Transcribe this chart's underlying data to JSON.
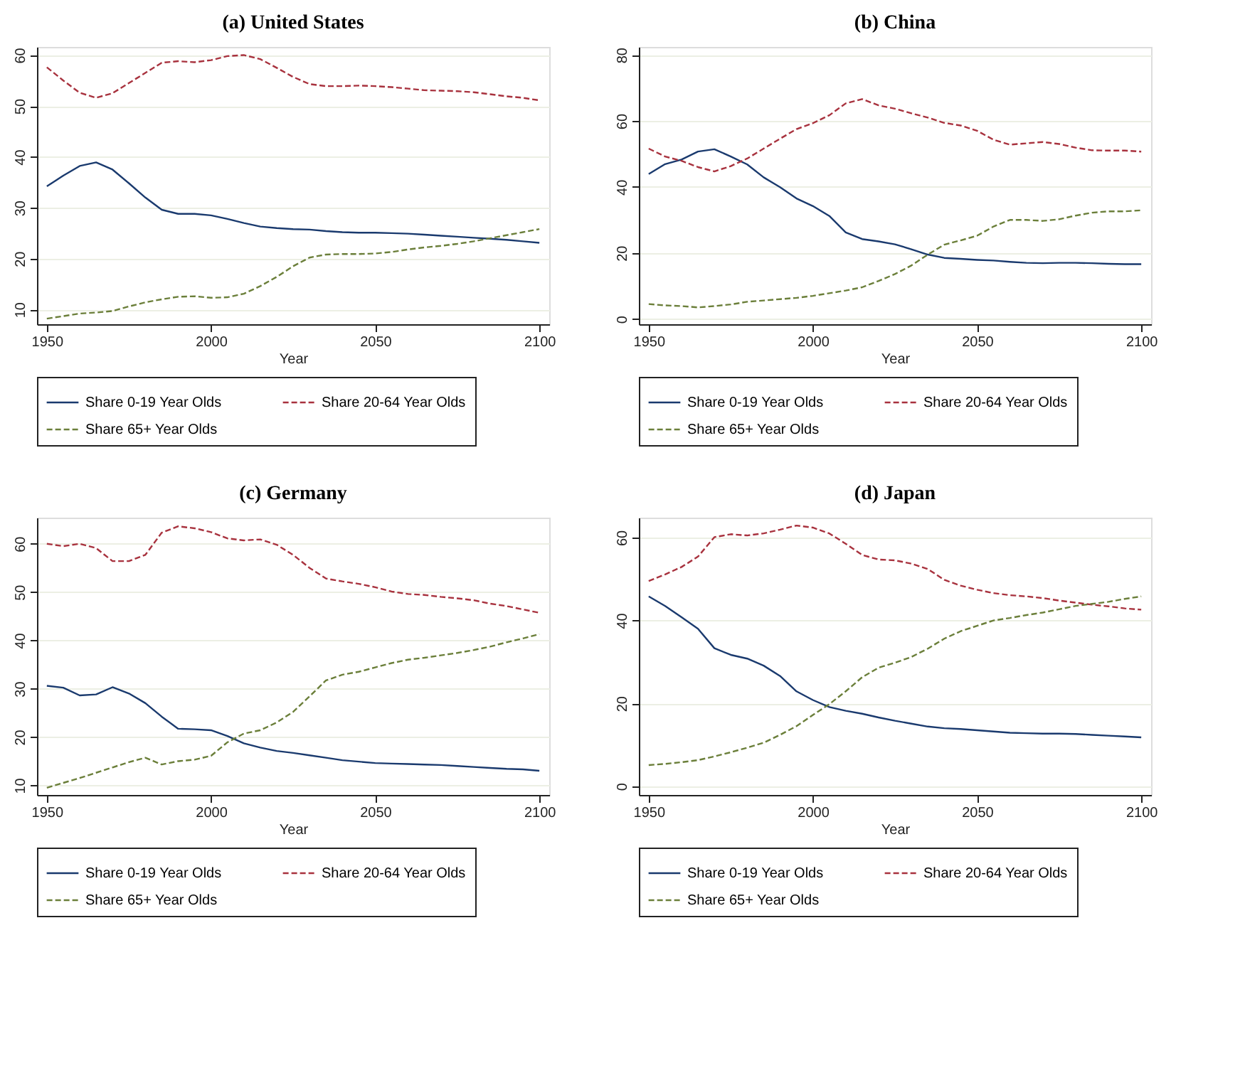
{
  "chart_data": [
    {
      "type": "line",
      "title": "(a) United States",
      "xlabel": "Year",
      "xlim": [
        1947,
        2103
      ],
      "xticks": [
        1950,
        2000,
        2050,
        2100
      ],
      "ylim": [
        7.1,
        61.6
      ],
      "yticks": [
        10,
        20,
        30,
        40,
        50,
        60
      ],
      "grid": "y",
      "legend": "bottom",
      "marker": "none",
      "x": [
        1950,
        1955,
        1960,
        1965,
        1970,
        1975,
        1980,
        1985,
        1990,
        1995,
        2000,
        2005,
        2010,
        2015,
        2020,
        2025,
        2030,
        2035,
        2040,
        2045,
        2050,
        2055,
        2060,
        2065,
        2070,
        2075,
        2080,
        2085,
        2090,
        2095,
        2100
      ],
      "series": [
        {
          "name": "Share 0-19 Year Olds",
          "color": "#1a3a6e",
          "line_style": "solid",
          "values": [
            34.2,
            36.3,
            38.2,
            38.9,
            37.5,
            34.8,
            32,
            29.6,
            28.8,
            28.8,
            28.5,
            27.8,
            27,
            26.3,
            26,
            25.8,
            25.7,
            25.4,
            25.2,
            25.1,
            25.1,
            25,
            24.9,
            24.7,
            24.5,
            24.3,
            24.1,
            23.9,
            23.7,
            23.4,
            23.1
          ]
        },
        {
          "name": "Share 20-64 Year Olds",
          "color": "#a8323e",
          "line_style": "dashed",
          "values": [
            57.6,
            55,
            52.6,
            51.6,
            52.5,
            54.5,
            56.5,
            58.5,
            58.8,
            58.6,
            59,
            59.8,
            60,
            59.2,
            57.5,
            55.7,
            54.3,
            53.9,
            53.9,
            54,
            53.9,
            53.7,
            53.4,
            53.1,
            53,
            52.9,
            52.7,
            52.3,
            51.9,
            51.6,
            51.1
          ]
        },
        {
          "name": "Share 65+ Year Olds",
          "color": "#6b7f3a",
          "line_style": "dashed",
          "values": [
            8.2,
            8.7,
            9.2,
            9.4,
            9.7,
            10.6,
            11.4,
            12,
            12.5,
            12.6,
            12.3,
            12.4,
            13.1,
            14.6,
            16.4,
            18.5,
            20.2,
            20.8,
            20.9,
            20.9,
            21,
            21.3,
            21.8,
            22.2,
            22.5,
            22.9,
            23.4,
            24,
            24.6,
            25.2,
            25.8
          ]
        }
      ]
    },
    {
      "type": "line",
      "title": "(b) China",
      "xlabel": "Year",
      "xlim": [
        1947,
        2103
      ],
      "xticks": [
        1950,
        2000,
        2050,
        2100
      ],
      "ylim": [
        -1.6,
        82.4
      ],
      "yticks": [
        0,
        20,
        40,
        60,
        80
      ],
      "grid": "y",
      "legend": "bottom",
      "marker": "none",
      "x": [
        1950,
        1955,
        1960,
        1965,
        1970,
        1975,
        1980,
        1985,
        1990,
        1995,
        2000,
        2005,
        2010,
        2015,
        2020,
        2025,
        2030,
        2035,
        2040,
        2045,
        2050,
        2055,
        2060,
        2065,
        2070,
        2075,
        2080,
        2085,
        2090,
        2095,
        2100
      ],
      "series": [
        {
          "name": "Share 0-19 Year Olds",
          "color": "#1a3a6e",
          "line_style": "solid",
          "values": [
            43.9,
            46.9,
            48.3,
            50.7,
            51.4,
            49.2,
            46.8,
            42.9,
            39.9,
            36.5,
            34.2,
            31.2,
            26.2,
            24.2,
            23.5,
            22.6,
            21.1,
            19.5,
            18.5,
            18.2,
            17.9,
            17.7,
            17.3,
            17,
            16.9,
            17,
            17,
            16.9,
            16.7,
            16.6,
            16.6
          ]
        },
        {
          "name": "Share 20-64 Year Olds",
          "color": "#a8323e",
          "line_style": "dashed",
          "values": [
            51.6,
            49.2,
            47.9,
            46,
            44.7,
            46.3,
            48.6,
            51.6,
            54.6,
            57.5,
            59.3,
            61.7,
            65.3,
            66.6,
            64.7,
            63.7,
            62.3,
            61,
            59.4,
            58.6,
            57,
            54.3,
            52.8,
            53.2,
            53.6,
            53,
            51.9,
            51.1,
            51,
            51,
            50.7
          ]
        },
        {
          "name": "Share 65+ Year Olds",
          "color": "#6b7f3a",
          "line_style": "dashed",
          "values": [
            4.5,
            4.1,
            3.9,
            3.5,
            3.9,
            4.4,
            5.2,
            5.6,
            6,
            6.4,
            7,
            7.8,
            8.6,
            9.6,
            11.5,
            13.6,
            16.2,
            19.5,
            22.5,
            23.8,
            25.2,
            28,
            30,
            30,
            29.7,
            30.2,
            31.3,
            32.2,
            32.6,
            32.6,
            32.9
          ]
        }
      ]
    },
    {
      "type": "line",
      "title": "(c) Germany",
      "xlabel": "Year",
      "xlim": [
        1947,
        2103
      ],
      "xticks": [
        1950,
        2000,
        2050,
        2100
      ],
      "ylim": [
        8,
        65.4
      ],
      "yticks": [
        10,
        20,
        30,
        40,
        50,
        60
      ],
      "grid": "y",
      "legend": "bottom",
      "marker": "none",
      "x": [
        1950,
        1955,
        1960,
        1965,
        1970,
        1975,
        1980,
        1985,
        1990,
        1995,
        2000,
        2005,
        2010,
        2015,
        2020,
        2025,
        2030,
        2035,
        2040,
        2045,
        2050,
        2055,
        2060,
        2065,
        2070,
        2075,
        2080,
        2085,
        2090,
        2095,
        2100
      ],
      "series": [
        {
          "name": "Share 0-19 Year Olds",
          "color": "#1a3a6e",
          "line_style": "solid",
          "values": [
            30.6,
            30.2,
            28.6,
            28.8,
            30.3,
            29,
            27,
            24.2,
            21.7,
            21.6,
            21.4,
            20.2,
            18.7,
            17.8,
            17.1,
            16.7,
            16.2,
            15.7,
            15.2,
            14.9,
            14.6,
            14.5,
            14.4,
            14.3,
            14.2,
            14,
            13.8,
            13.6,
            13.4,
            13.3,
            13
          ]
        },
        {
          "name": "Share 20-64 Year Olds",
          "color": "#a8323e",
          "line_style": "dashed",
          "values": [
            60,
            59.5,
            60,
            59.1,
            56.4,
            56.4,
            57.7,
            62.3,
            63.6,
            63.2,
            62.4,
            61.1,
            60.7,
            60.9,
            59.8,
            57.7,
            55,
            52.8,
            52.2,
            51.7,
            51,
            50.1,
            49.6,
            49.4,
            49,
            48.7,
            48.3,
            47.6,
            47.1,
            46.4,
            45.7
          ]
        },
        {
          "name": "Share 65+ Year Olds",
          "color": "#6b7f3a",
          "line_style": "dashed",
          "values": [
            9.5,
            10.5,
            11.5,
            12.6,
            13.7,
            14.8,
            15.7,
            14.3,
            15,
            15.3,
            16.1,
            18.9,
            20.7,
            21.4,
            23,
            25.2,
            28.4,
            31.7,
            32.9,
            33.5,
            34.4,
            35.3,
            36,
            36.4,
            36.9,
            37.4,
            38,
            38.7,
            39.6,
            40.4,
            41.3
          ]
        }
      ]
    },
    {
      "type": "line",
      "title": "(d) Japan",
      "xlabel": "Year",
      "xlim": [
        1947,
        2103
      ],
      "xticks": [
        1950,
        2000,
        2050,
        2100
      ],
      "ylim": [
        -2.1,
        64.8
      ],
      "yticks": [
        0,
        20,
        40,
        60
      ],
      "grid": "y",
      "legend": "bottom",
      "marker": "none",
      "x": [
        1950,
        1955,
        1960,
        1965,
        1970,
        1975,
        1980,
        1985,
        1990,
        1995,
        2000,
        2005,
        2010,
        2015,
        2020,
        2025,
        2030,
        2035,
        2040,
        2045,
        2050,
        2055,
        2060,
        2065,
        2070,
        2075,
        2080,
        2085,
        2090,
        2095,
        2100
      ],
      "series": [
        {
          "name": "Share 0-19 Year Olds",
          "color": "#1a3a6e",
          "line_style": "solid",
          "values": [
            45.8,
            43.5,
            40.8,
            38,
            33.3,
            31.7,
            30.8,
            29.1,
            26.6,
            22.9,
            20.8,
            19.1,
            18.2,
            17.5,
            16.6,
            15.8,
            15.1,
            14.4,
            14,
            13.8,
            13.5,
            13.2,
            12.9,
            12.8,
            12.7,
            12.7,
            12.6,
            12.4,
            12.2,
            12,
            11.8
          ]
        },
        {
          "name": "Share 20-64 Year Olds",
          "color": "#a8323e",
          "line_style": "dashed",
          "values": [
            49.5,
            51.1,
            52.9,
            55.4,
            60.1,
            60.8,
            60.5,
            61,
            61.9,
            62.9,
            62.4,
            61,
            58.5,
            55.8,
            54.7,
            54.5,
            53.7,
            52.4,
            49.8,
            48.4,
            47.4,
            46.6,
            46.1,
            45.8,
            45.4,
            44.8,
            44.3,
            43.8,
            43.4,
            42.9,
            42.6
          ]
        },
        {
          "name": "Share 65+ Year Olds",
          "color": "#6b7f3a",
          "line_style": "dashed",
          "values": [
            5.1,
            5.4,
            5.8,
            6.3,
            7.2,
            8.2,
            9.3,
            10.5,
            12.4,
            14.5,
            17.2,
            19.8,
            22.9,
            26.3,
            28.6,
            29.8,
            31.2,
            33.2,
            35.6,
            37.4,
            38.7,
            40,
            40.6,
            41.3,
            41.9,
            42.7,
            43.5,
            44,
            44.5,
            45.2,
            45.8
          ]
        }
      ]
    }
  ]
}
